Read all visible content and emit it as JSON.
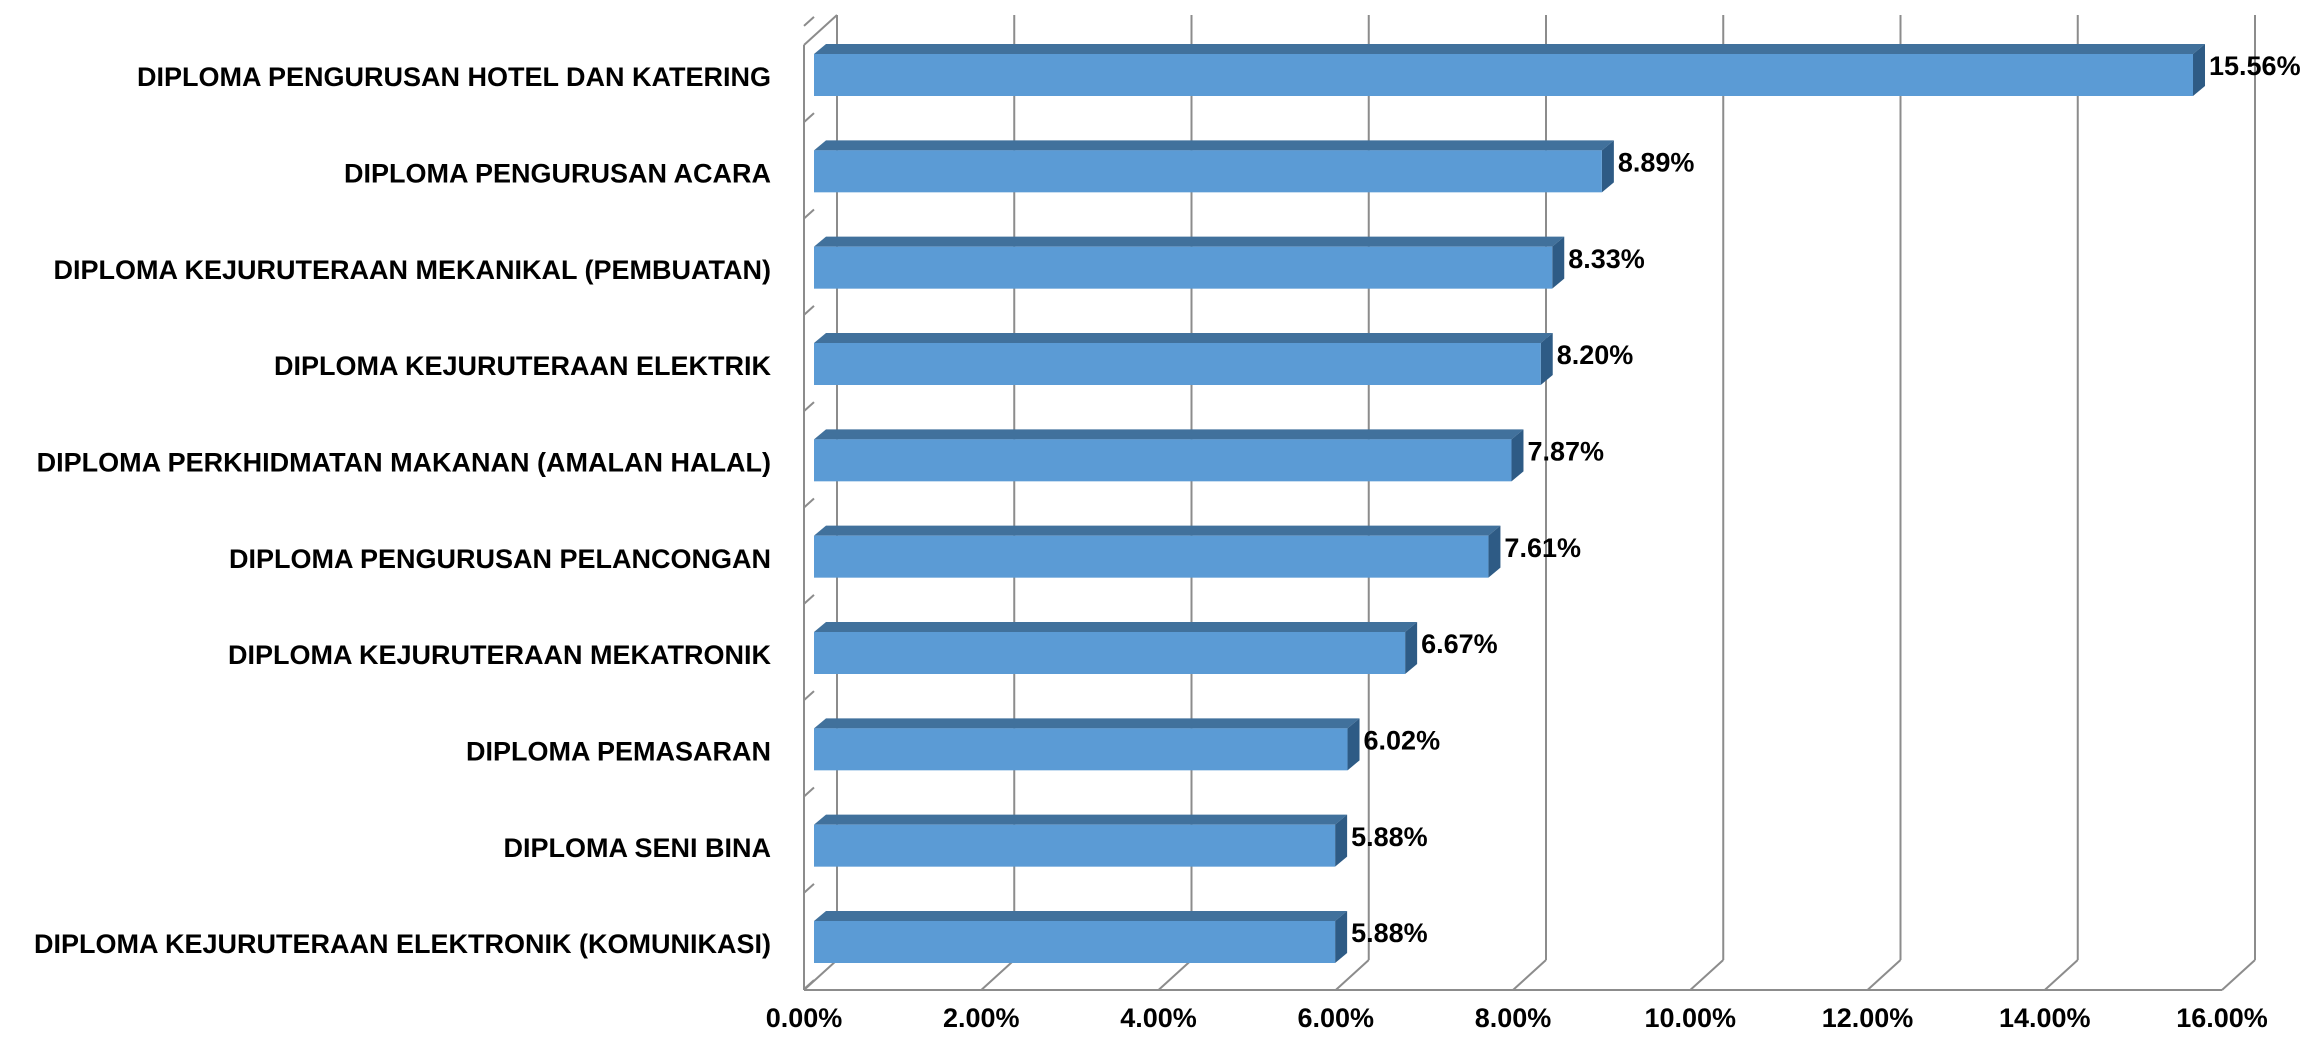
{
  "chart_data": {
    "type": "bar",
    "orientation": "horizontal",
    "categories": [
      "DIPLOMA PENGURUSAN HOTEL DAN KATERING",
      "DIPLOMA PENGURUSAN ACARA",
      "DIPLOMA KEJURUTERAAN MEKANIKAL (PEMBUATAN)",
      "DIPLOMA KEJURUTERAAN ELEKTRIK",
      "DIPLOMA PERKHIDMATAN MAKANAN (AMALAN HALAL)",
      "DIPLOMA PENGURUSAN PELANCONGAN",
      "DIPLOMA KEJURUTERAAN MEKATRONIK",
      "DIPLOMA PEMASARAN",
      "DIPLOMA SENI BINA",
      "DIPLOMA KEJURUTERAAN ELEKTRONIK (KOMUNIKASI)"
    ],
    "values": [
      15.56,
      8.89,
      8.33,
      8.2,
      7.87,
      7.61,
      6.67,
      6.02,
      5.88,
      5.88
    ],
    "value_labels": [
      "15.56%",
      "8.89%",
      "8.33%",
      "8.20%",
      "7.87%",
      "7.61%",
      "6.67%",
      "6.02%",
      "5.88%",
      "5.88%"
    ],
    "color": "#5b9bd5",
    "xlim": [
      0,
      16
    ],
    "xticks": [
      {
        "value": 0,
        "label": "0.00%"
      },
      {
        "value": 2,
        "label": "2.00%"
      },
      {
        "value": 4,
        "label": "4.00%"
      },
      {
        "value": 6,
        "label": "6.00%"
      },
      {
        "value": 8,
        "label": "8.00%"
      },
      {
        "value": 10,
        "label": "10.00%"
      },
      {
        "value": 12,
        "label": "12.00%"
      },
      {
        "value": 14,
        "label": "14.00%"
      },
      {
        "value": 16,
        "label": "16.00%"
      }
    ],
    "grid": true
  }
}
